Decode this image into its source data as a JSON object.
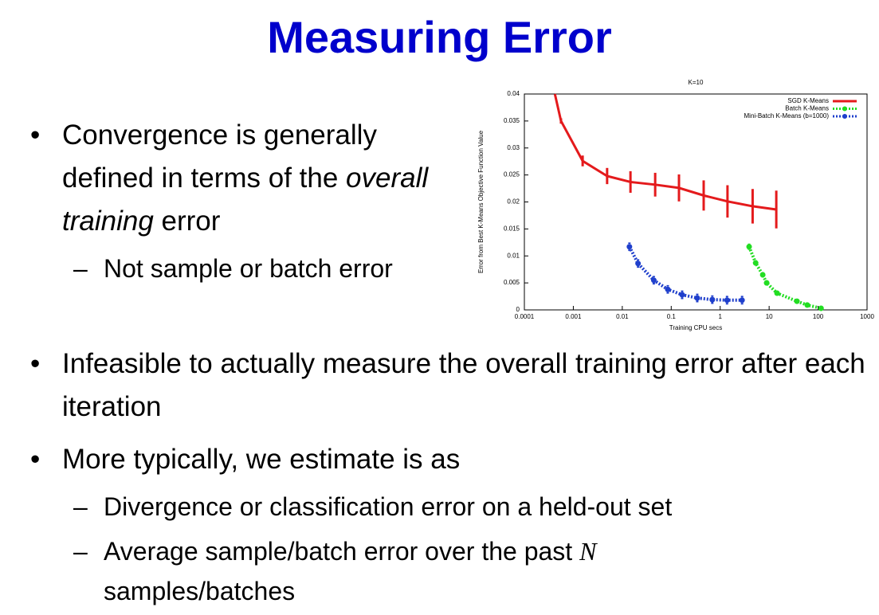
{
  "title": "Measuring Error",
  "bullets": [
    {
      "parts": [
        {
          "text": "Convergence is generally defined in terms of the"
        },
        {
          "text": "overall training",
          "italic": true
        },
        {
          "text": "error"
        }
      ],
      "sub": [
        {
          "parts": [
            {
              "text": "Not sample or batch error"
            }
          ]
        }
      ]
    },
    {
      "parts": [
        {
          "text": "Infeasible to actually measure the overall training error after each iteration"
        }
      ]
    },
    {
      "parts": [
        {
          "text": "More typically, we estimate is as"
        }
      ],
      "sub": [
        {
          "parts": [
            {
              "text": "Divergence or classification error on a held-out set"
            }
          ]
        },
        {
          "parts": [
            {
              "text": "Average sample/batch error over the past"
            },
            {
              "text": "N",
              "italic": true
            },
            {
              "text": "samples/batches"
            }
          ]
        }
      ]
    }
  ],
  "chart_data": {
    "type": "line",
    "title": "K=10",
    "xlabel": "Training CPU secs",
    "ylabel": "Error from Best K-Means Objective Function Value",
    "xscale": "log",
    "xlim": [
      0.0001,
      1000
    ],
    "xticks": [
      0.0001,
      0.001,
      0.01,
      0.1,
      1,
      10,
      100,
      1000
    ],
    "ylim": [
      0,
      0.04
    ],
    "yticks": [
      0,
      0.005,
      0.01,
      0.015,
      0.02,
      0.025,
      0.03,
      0.035,
      0.04
    ],
    "legend": "upper right",
    "series": [
      {
        "name": "SGD K-Means",
        "color": "#e41a1c",
        "style": "solid",
        "x": [
          0.00042,
          0.00056,
          0.00155,
          0.0049,
          0.0147,
          0.047,
          0.144,
          0.46,
          1.41,
          4.6,
          14
        ],
        "values": [
          0.04,
          0.035,
          0.0276,
          0.0248,
          0.0237,
          0.0232,
          0.0226,
          0.0212,
          0.0201,
          0.0192,
          0.0186
        ],
        "errors": [
          null,
          0.0005,
          0.001,
          0.0015,
          0.002,
          0.0022,
          0.0025,
          0.0028,
          0.003,
          0.0032,
          0.0035
        ]
      },
      {
        "name": "Batch K-Means",
        "color": "#22dd22",
        "style": "dotted",
        "x": [
          3.9,
          5.3,
          7.4,
          8.9,
          14.5,
          37,
          60,
          115
        ],
        "values": [
          0.0117,
          0.0087,
          0.0065,
          0.005,
          0.0031,
          0.0016,
          0.0009,
          0.0003
        ],
        "errors": [
          0.0006,
          0.0005,
          0.0005,
          0.0005,
          0.0004,
          0.0004,
          0.0003,
          0.0003
        ]
      },
      {
        "name": "Mini-Batch K-Means (b=1000)",
        "color": "#1f3fcc",
        "style": "dotted",
        "x": [
          0.014,
          0.021,
          0.044,
          0.085,
          0.167,
          0.34,
          0.69,
          1.38,
          2.8
        ],
        "values": [
          0.0117,
          0.0086,
          0.0055,
          0.0038,
          0.0028,
          0.0022,
          0.0019,
          0.0018,
          0.0018
        ],
        "errors": [
          0.0008,
          0.0008,
          0.0008,
          0.0008,
          0.0008,
          0.0008,
          0.0008,
          0.0008,
          0.0008
        ]
      }
    ]
  }
}
